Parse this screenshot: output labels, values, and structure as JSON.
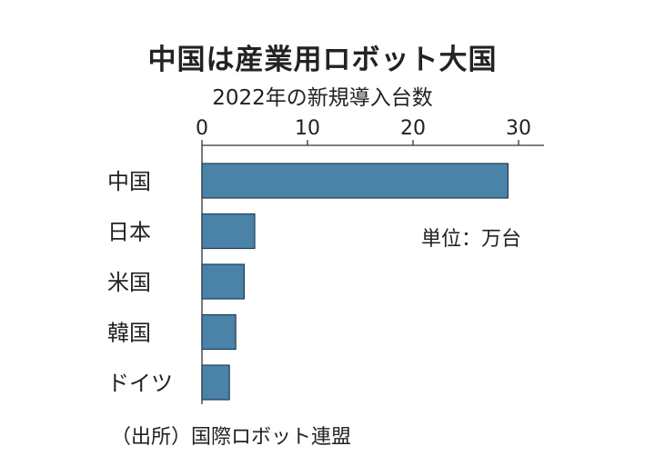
{
  "chart_data": {
    "type": "bar",
    "orientation": "horizontal",
    "title": "中国は産業用ロボット大国",
    "subtitle": "2022年の新規導入台数",
    "unit_note": "単位：万台",
    "source": "（出所）国際ロボット連盟",
    "categories": [
      "中国",
      "日本",
      "米国",
      "韓国",
      "ドイツ"
    ],
    "values": [
      29,
      5,
      4,
      3.2,
      2.6
    ],
    "xlim": [
      0,
      32
    ],
    "xticks": [
      0,
      10,
      20,
      30
    ],
    "xtick_labels": [
      "0",
      "10",
      "20",
      "30"
    ],
    "axis_position": "top",
    "grid": false,
    "legend": "none",
    "bar_color": "#4a82a8",
    "bar_stroke": "#1f3d55"
  }
}
